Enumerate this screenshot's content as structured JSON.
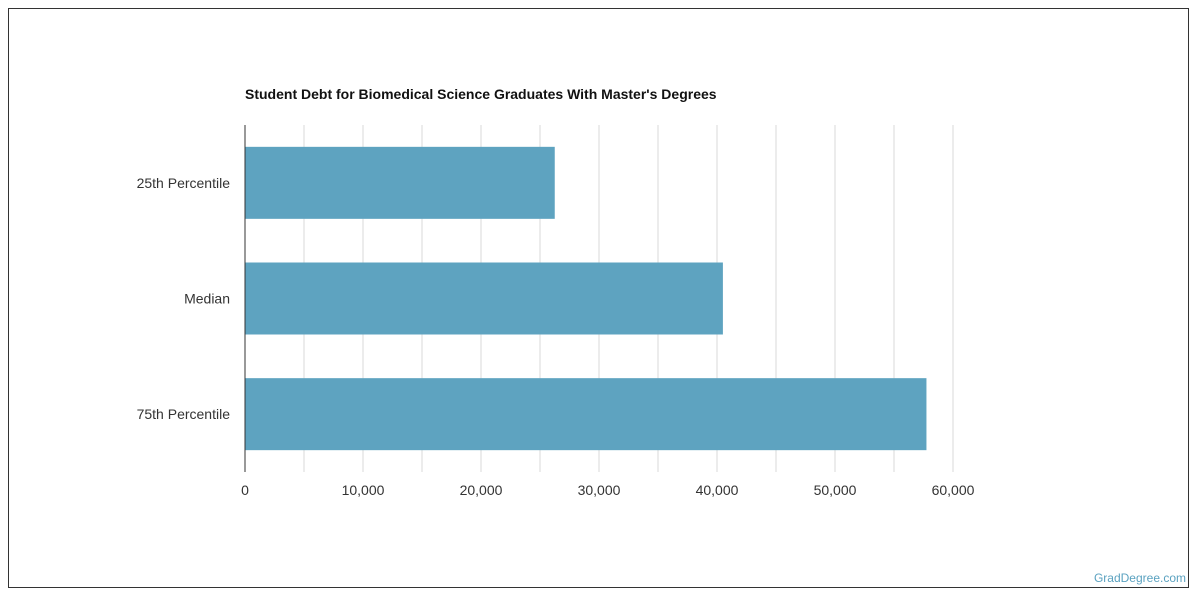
{
  "title": "Student Debt for Biomedical Science Graduates With Master's Degrees",
  "credit": "GradDegree.com",
  "colors": {
    "bar": "#5ea3c0",
    "grid": "#d9d9d9",
    "axis": "#333333",
    "credit": "#5ba2c0"
  },
  "chart_data": {
    "type": "bar",
    "orientation": "horizontal",
    "title": "Student Debt for Biomedical Science Graduates With Master's Degrees",
    "categories": [
      "25th Percentile",
      "Median",
      "75th Percentile"
    ],
    "values": [
      26250,
      40500,
      57750
    ],
    "xlim": [
      0,
      60000
    ],
    "x_ticks": [
      0,
      10000,
      20000,
      30000,
      40000,
      50000,
      60000
    ],
    "x_tick_labels": [
      "0",
      "10,000",
      "20,000",
      "30,000",
      "40,000",
      "50,000",
      "60,000"
    ],
    "xlabel": "",
    "ylabel": "",
    "grid": true,
    "legend": "none"
  }
}
